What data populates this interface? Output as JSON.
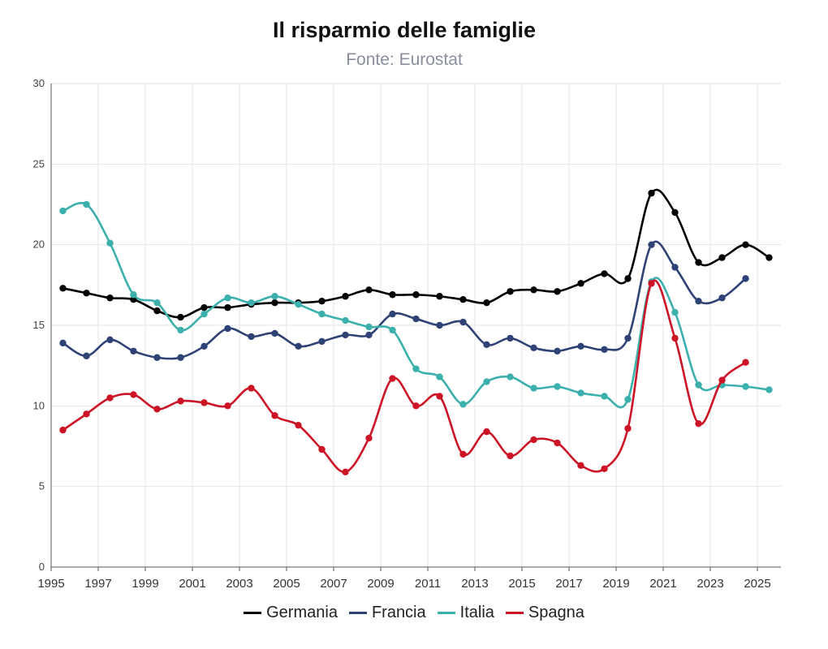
{
  "chart_data": {
    "type": "line",
    "title": "Il risparmio delle famiglie",
    "subtitle": "Fonte: Eurostat",
    "xlabel": "",
    "ylabel": "",
    "xlim": [
      1995,
      2026
    ],
    "ylim": [
      0,
      30
    ],
    "yticks": [
      0,
      5,
      10,
      15,
      20,
      25,
      30
    ],
    "xticks": [
      1995,
      1997,
      1999,
      2001,
      2003,
      2005,
      2007,
      2009,
      2011,
      2013,
      2015,
      2017,
      2019,
      2021,
      2023,
      2025
    ],
    "grid": true,
    "legend_position": "bottom",
    "x": [
      1995.5,
      1996.5,
      1997.5,
      1998.5,
      1999.5,
      2000.5,
      2001.5,
      2002.5,
      2003.5,
      2004.5,
      2005.5,
      2006.5,
      2007.5,
      2008.5,
      2009.5,
      2010.5,
      2011.5,
      2012.5,
      2013.5,
      2014.5,
      2015.5,
      2016.5,
      2017.5,
      2018.5,
      2019.5,
      2020.5,
      2021.5,
      2022.5,
      2023.5,
      2024.5,
      2025.5
    ],
    "series": [
      {
        "name": "Germania",
        "color": "#000000",
        "values": [
          17.3,
          17.0,
          16.7,
          16.6,
          15.9,
          15.5,
          16.1,
          16.1,
          16.3,
          16.4,
          16.4,
          16.5,
          16.8,
          17.2,
          16.9,
          16.9,
          16.8,
          16.6,
          16.4,
          17.1,
          17.2,
          17.1,
          17.6,
          18.2,
          17.9,
          23.2,
          22.0,
          18.9,
          19.2,
          20.0,
          19.2
        ]
      },
      {
        "name": "Francia",
        "color": "#2f4275",
        "values": [
          13.9,
          13.1,
          14.1,
          13.4,
          13.0,
          13.0,
          13.7,
          14.8,
          14.3,
          14.5,
          13.7,
          14.0,
          14.4,
          14.4,
          15.7,
          15.4,
          15.0,
          15.2,
          13.8,
          14.2,
          13.6,
          13.4,
          13.7,
          13.5,
          14.2,
          20.0,
          18.6,
          16.5,
          16.7,
          17.9,
          null
        ]
      },
      {
        "name": "Italia",
        "color": "#3bb0ad",
        "values": [
          22.1,
          22.5,
          20.1,
          16.9,
          16.4,
          14.7,
          15.7,
          16.7,
          16.4,
          16.8,
          16.3,
          15.7,
          15.3,
          14.9,
          14.7,
          12.3,
          11.8,
          10.1,
          11.5,
          11.8,
          11.1,
          11.2,
          10.8,
          10.6,
          10.4,
          17.7,
          15.8,
          11.3,
          11.3,
          11.2,
          11.0
        ]
      },
      {
        "name": "Spagna",
        "color": "#cc1426",
        "values": [
          8.5,
          9.5,
          10.5,
          10.7,
          9.8,
          10.3,
          10.2,
          10.0,
          11.1,
          9.4,
          8.8,
          7.3,
          5.9,
          8.0,
          11.7,
          10.0,
          10.6,
          7.0,
          8.4,
          6.9,
          7.9,
          7.7,
          6.3,
          6.1,
          8.6,
          17.6,
          14.2,
          8.9,
          11.6,
          12.7,
          null
        ]
      }
    ]
  }
}
